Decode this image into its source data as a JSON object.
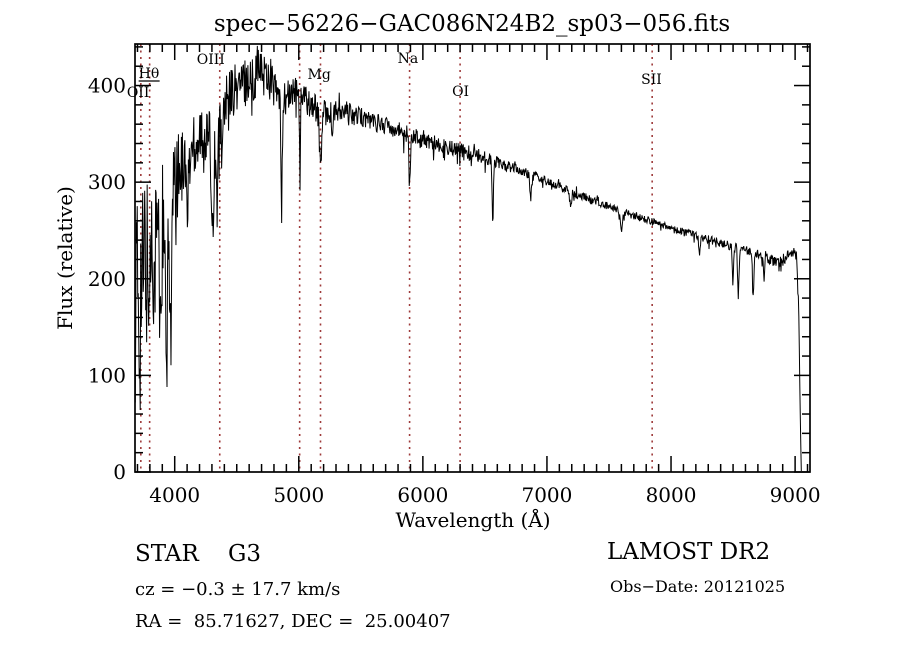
{
  "chart_data": {
    "type": "line",
    "title": "spec−56226−GAC086N24B2_sp03−056.fits",
    "xlabel": "Wavelength (Å)",
    "ylabel": "Flux (relative)",
    "xlim": [
      3680,
      9120
    ],
    "ylim": [
      0,
      443
    ],
    "x_major_ticks": [
      4000,
      5000,
      6000,
      7000,
      8000,
      9000
    ],
    "x_minor_step": 100,
    "y_major_ticks": [
      0,
      100,
      200,
      300,
      400
    ],
    "y_minor_step": 20,
    "grid": false,
    "legend": "none",
    "axis_color": "#000000",
    "trace_color": "#000000",
    "marker_line_color": "#9e3a3a",
    "spectral_lines": [
      {
        "label": "Hθ",
        "wavelength": 3798,
        "underline": true,
        "label_dx": -11,
        "label_y": 78
      },
      {
        "label": "OII",
        "wavelength": 3727,
        "underline": false,
        "label_dx": -14,
        "label_y": 97
      },
      {
        "label": "OIII",
        "wavelength": 4363,
        "underline": false,
        "label_dx": -23,
        "label_y": 64
      },
      {
        "label": "",
        "wavelength": 5007,
        "underline": false,
        "label_dx": 0,
        "label_y": 64
      },
      {
        "label": "Mg",
        "wavelength": 5175,
        "underline": false,
        "label_dx": -13,
        "label_y": 79
      },
      {
        "label": "Na",
        "wavelength": 5893,
        "underline": false,
        "label_dx": -12,
        "label_y": 63
      },
      {
        "label": "OI",
        "wavelength": 6300,
        "underline": false,
        "label_dx": -8,
        "label_y": 96
      },
      {
        "label": "SII",
        "wavelength": 7848,
        "underline": false,
        "label_dx": -11,
        "label_y": 84
      }
    ],
    "spectrum": {
      "sample_step_angstrom": 4,
      "wavelength_range": [
        3682,
        9050
      ],
      "continuum": [
        [
          3682,
          190
        ],
        [
          3700,
          178
        ],
        [
          3715,
          168
        ],
        [
          3730,
          186
        ],
        [
          3748,
          198
        ],
        [
          3765,
          208
        ],
        [
          3782,
          220
        ],
        [
          3800,
          238
        ],
        [
          3820,
          248
        ],
        [
          3845,
          252
        ],
        [
          3870,
          249
        ],
        [
          3900,
          240
        ],
        [
          3930,
          228
        ],
        [
          3958,
          252
        ],
        [
          3985,
          282
        ],
        [
          4015,
          303
        ],
        [
          4055,
          317
        ],
        [
          4100,
          328
        ],
        [
          4150,
          338
        ],
        [
          4200,
          348
        ],
        [
          4245,
          352
        ],
        [
          4285,
          344
        ],
        [
          4320,
          340
        ],
        [
          4360,
          356
        ],
        [
          4400,
          378
        ],
        [
          4450,
          392
        ],
        [
          4505,
          399
        ],
        [
          4560,
          404
        ],
        [
          4620,
          409
        ],
        [
          4680,
          413
        ],
        [
          4735,
          414
        ],
        [
          4775,
          405
        ],
        [
          4815,
          394
        ],
        [
          4855,
          380
        ],
        [
          4900,
          386
        ],
        [
          4950,
          392
        ],
        [
          5005,
          390
        ],
        [
          5060,
          385
        ],
        [
          5120,
          379
        ],
        [
          5180,
          369
        ],
        [
          5240,
          374
        ],
        [
          5320,
          372
        ],
        [
          5410,
          370
        ],
        [
          5500,
          367
        ],
        [
          5590,
          364
        ],
        [
          5680,
          360
        ],
        [
          5770,
          356
        ],
        [
          5860,
          351
        ],
        [
          5950,
          347
        ],
        [
          6040,
          343
        ],
        [
          6130,
          339
        ],
        [
          6220,
          336
        ],
        [
          6310,
          333
        ],
        [
          6400,
          330
        ],
        [
          6490,
          326
        ],
        [
          6580,
          322
        ],
        [
          6670,
          317
        ],
        [
          6760,
          313
        ],
        [
          6850,
          309
        ],
        [
          6940,
          304
        ],
        [
          7030,
          299
        ],
        [
          7120,
          294
        ],
        [
          7210,
          289
        ],
        [
          7300,
          285
        ],
        [
          7390,
          280
        ],
        [
          7480,
          276
        ],
        [
          7570,
          271
        ],
        [
          7660,
          267
        ],
        [
          7750,
          263
        ],
        [
          7840,
          259
        ],
        [
          7930,
          255
        ],
        [
          8020,
          251
        ],
        [
          8110,
          248
        ],
        [
          8200,
          245
        ],
        [
          8290,
          241
        ],
        [
          8380,
          238
        ],
        [
          8470,
          234
        ],
        [
          8560,
          231
        ],
        [
          8650,
          228
        ],
        [
          8740,
          223
        ],
        [
          8830,
          218
        ],
        [
          8890,
          218
        ],
        [
          8940,
          224
        ],
        [
          8985,
          229
        ],
        [
          9010,
          224
        ],
        [
          9028,
          170
        ],
        [
          9040,
          80
        ],
        [
          9048,
          8
        ],
        [
          9050,
          2
        ]
      ],
      "absorption_features": [
        {
          "center": 3798,
          "depth": 55,
          "width": 7
        },
        {
          "center": 3835,
          "depth": 60,
          "width": 7
        },
        {
          "center": 3889,
          "depth": 70,
          "width": 8
        },
        {
          "center": 3934,
          "depth": 135,
          "width": 10
        },
        {
          "center": 3969,
          "depth": 115,
          "width": 10
        },
        {
          "center": 4102,
          "depth": 70,
          "width": 9
        },
        {
          "center": 4227,
          "depth": 40,
          "width": 6
        },
        {
          "center": 4305,
          "depth": 85,
          "width": 13
        },
        {
          "center": 4340,
          "depth": 75,
          "width": 8
        },
        {
          "center": 4383,
          "depth": 45,
          "width": 7
        },
        {
          "center": 4861,
          "depth": 90,
          "width": 8
        },
        {
          "center": 5010,
          "depth": 85,
          "width": 5
        },
        {
          "center": 5175,
          "depth": 58,
          "width": 11
        },
        {
          "center": 5270,
          "depth": 25,
          "width": 8
        },
        {
          "center": 5893,
          "depth": 55,
          "width": 8
        },
        {
          "center": 6563,
          "depth": 68,
          "width": 7
        },
        {
          "center": 6870,
          "depth": 28,
          "width": 9
        },
        {
          "center": 7190,
          "depth": 15,
          "width": 10
        },
        {
          "center": 7600,
          "depth": 22,
          "width": 10
        },
        {
          "center": 8230,
          "depth": 20,
          "width": 8
        },
        {
          "center": 8498,
          "depth": 35,
          "width": 7
        },
        {
          "center": 8542,
          "depth": 50,
          "width": 8
        },
        {
          "center": 8662,
          "depth": 48,
          "width": 8
        },
        {
          "center": 8750,
          "depth": 25,
          "width": 7
        }
      ],
      "noise_profile": [
        [
          3682,
          118
        ],
        [
          3710,
          124
        ],
        [
          3740,
          110
        ],
        [
          3770,
          95
        ],
        [
          3800,
          80
        ],
        [
          3840,
          70
        ],
        [
          3880,
          62
        ],
        [
          3920,
          58
        ],
        [
          3960,
          52
        ],
        [
          4000,
          45
        ],
        [
          4060,
          40
        ],
        [
          4120,
          36
        ],
        [
          4200,
          33
        ],
        [
          4300,
          30
        ],
        [
          4400,
          28
        ],
        [
          4500,
          27
        ],
        [
          4600,
          26
        ],
        [
          4700,
          26
        ],
        [
          4800,
          22
        ],
        [
          4900,
          19
        ],
        [
          5000,
          17
        ],
        [
          5100,
          15
        ],
        [
          5200,
          14
        ],
        [
          5300,
          12
        ],
        [
          5500,
          11
        ],
        [
          5700,
          10
        ],
        [
          5900,
          9
        ],
        [
          6100,
          8
        ],
        [
          6300,
          8
        ],
        [
          6600,
          6
        ],
        [
          7000,
          5
        ],
        [
          7400,
          4
        ],
        [
          7800,
          4
        ],
        [
          8200,
          4
        ],
        [
          8500,
          5
        ],
        [
          8800,
          5
        ],
        [
          9000,
          7
        ]
      ]
    }
  },
  "annotations": {
    "class_label": "STAR    G3",
    "cz_label": "cz = −0.3 ± 17.7 km/s",
    "radec_label": "RA =  85.71627, DEC =  25.00407",
    "survey_label": "LAMOST DR2",
    "obsdate_label": "Obs−Date: 20121025"
  }
}
